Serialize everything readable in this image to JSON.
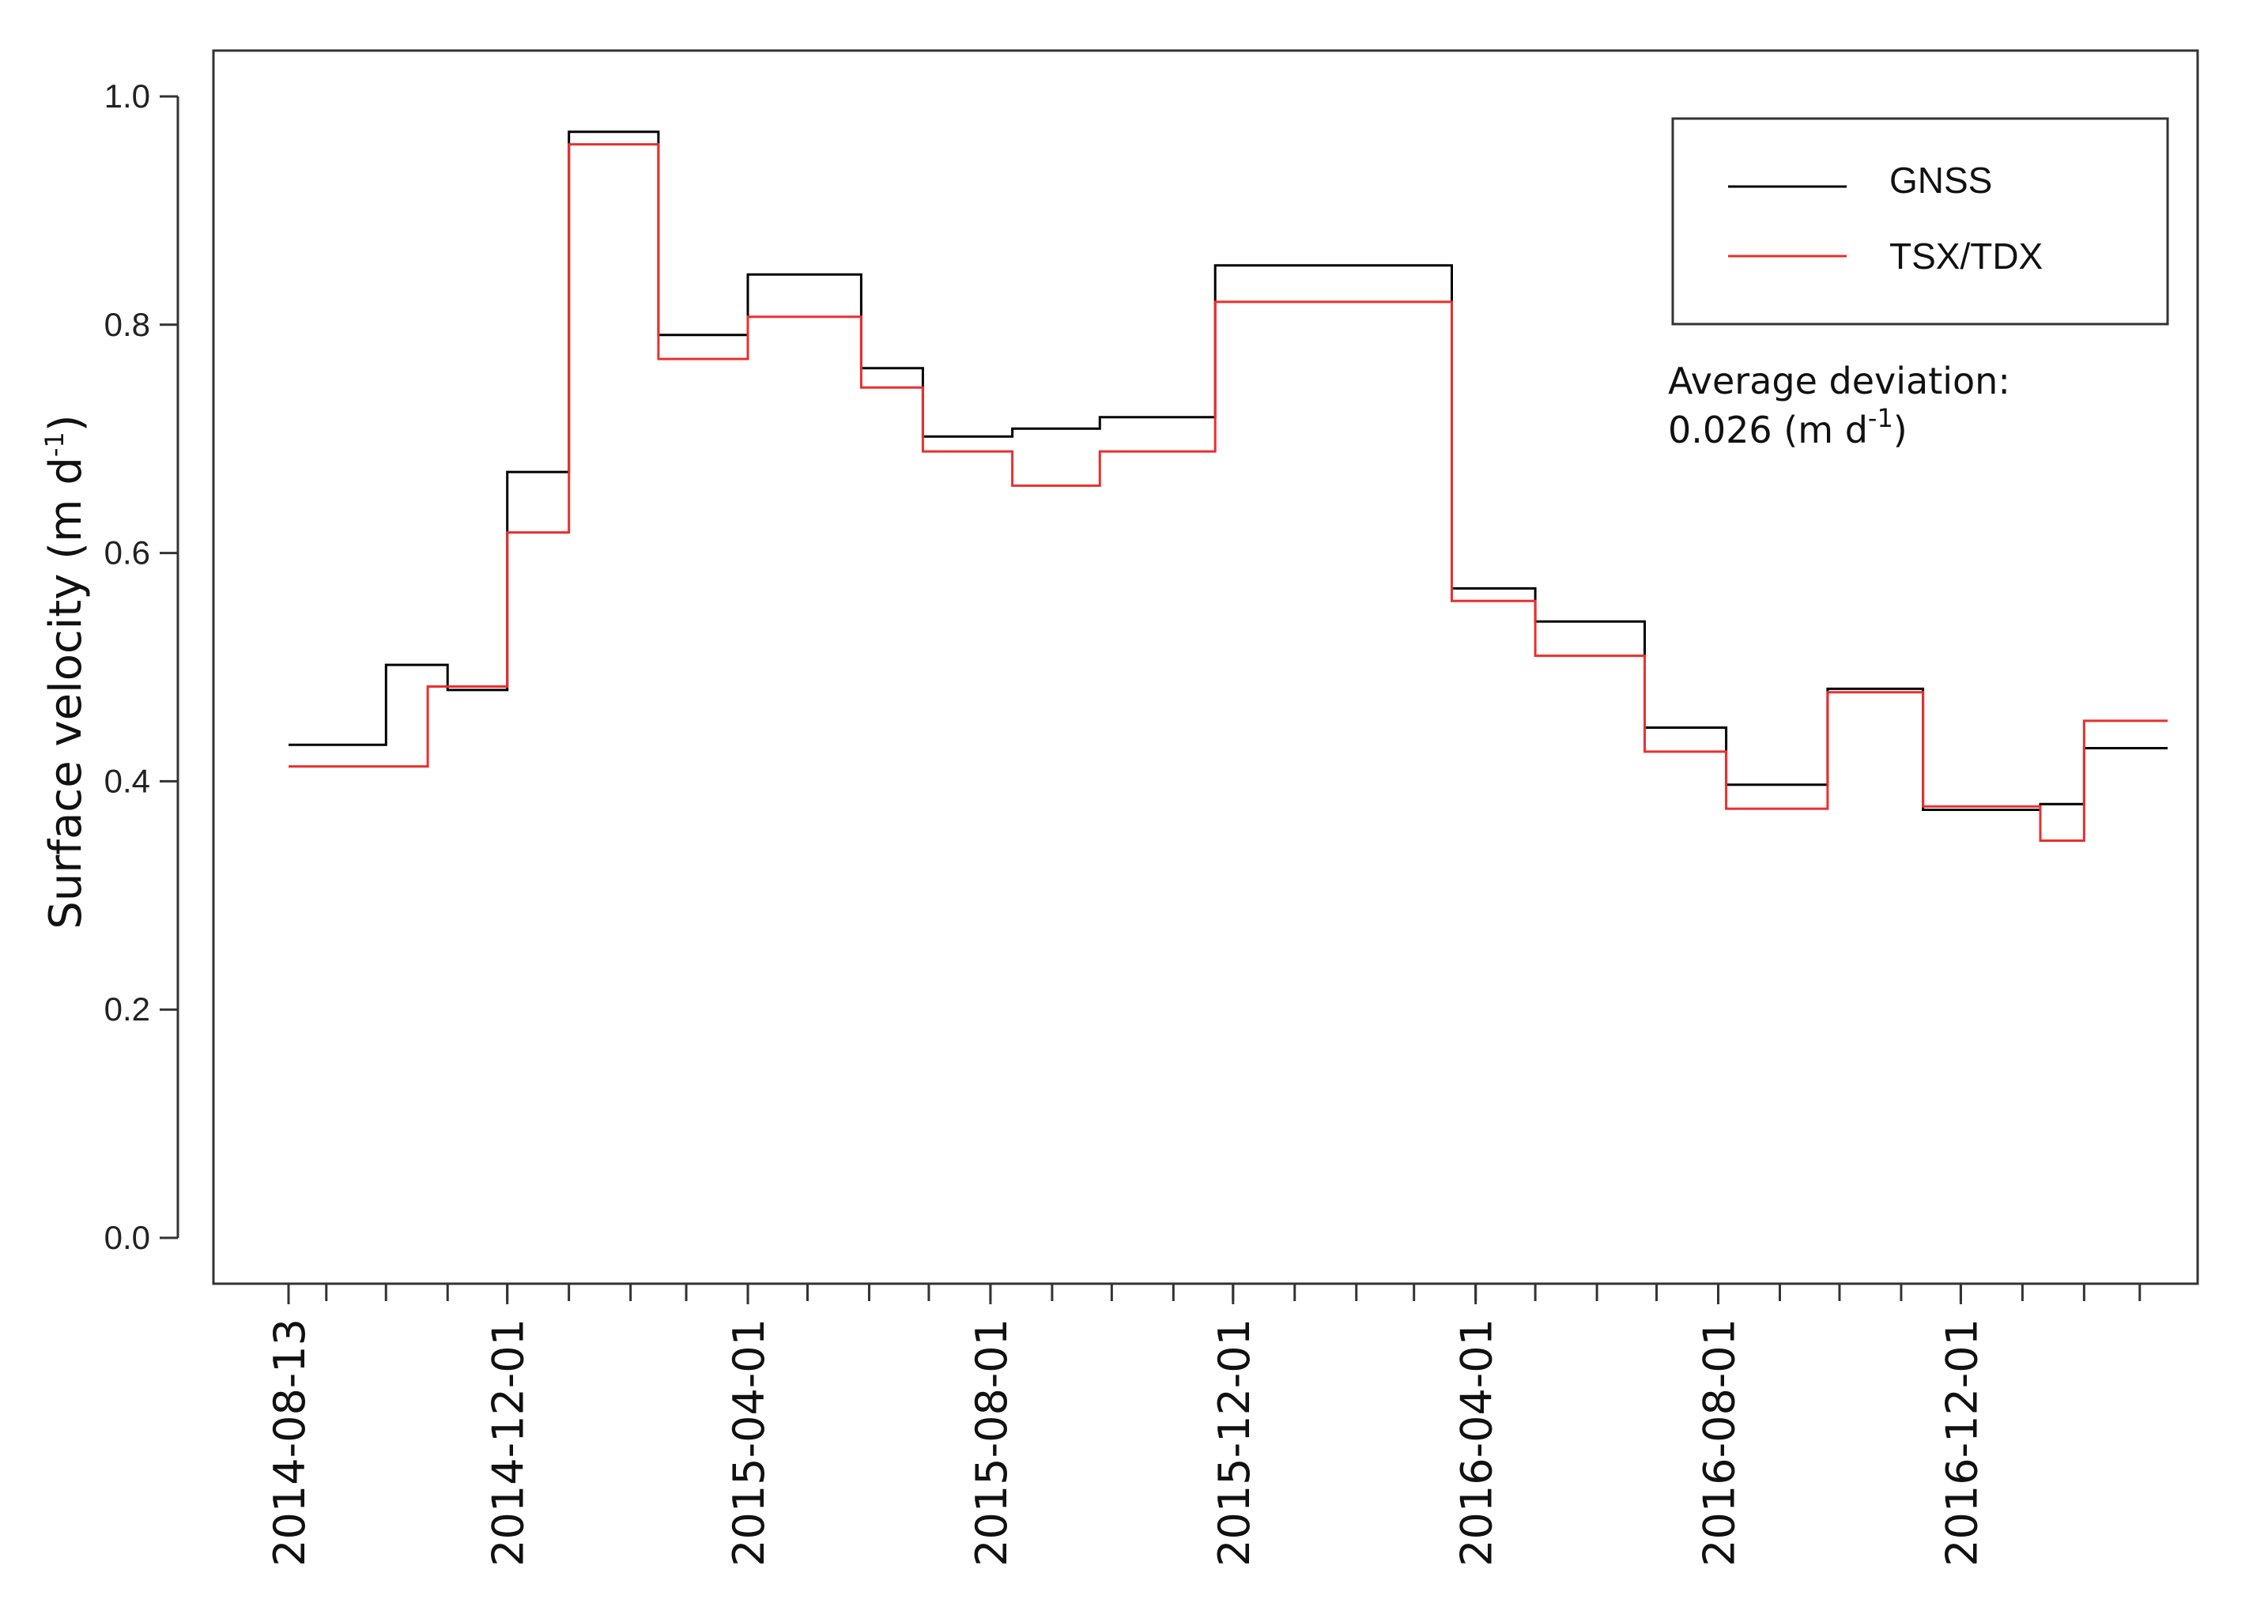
{
  "chart_data": {
    "type": "line",
    "step": true,
    "title": "",
    "xlabel": "",
    "ylabel": "Surface velocity (m d",
    "ylabel_superscript": "-1",
    "ylabel_suffix": ")",
    "ylim": [
      0.0,
      1.0
    ],
    "yticks": [
      "0.0",
      "0.2",
      "0.4",
      "0.6",
      "0.8",
      "1.0"
    ],
    "xlim": [
      "2014-08-13",
      "2017-03-15"
    ],
    "xticks": [
      "2014-08-13",
      "2014-12-01",
      "2015-04-01",
      "2015-08-01",
      "2015-12-01",
      "2016-04-01",
      "2016-08-01",
      "2016-12-01"
    ],
    "grid": false,
    "legend_position": "top-right",
    "series": [
      {
        "name": "GNSS",
        "color": "#000000",
        "steps": [
          {
            "start": "2014-08-13",
            "end": "2014-10-01",
            "value": 0.432
          },
          {
            "start": "2014-10-01",
            "end": "2014-11-01",
            "value": 0.502
          },
          {
            "start": "2014-11-01",
            "end": "2014-12-01",
            "value": 0.48
          },
          {
            "start": "2014-12-01",
            "end": "2015-01-01",
            "value": 0.671
          },
          {
            "start": "2015-01-01",
            "end": "2015-02-15",
            "value": 0.969
          },
          {
            "start": "2015-02-15",
            "end": "2015-04-01",
            "value": 0.791
          },
          {
            "start": "2015-04-01",
            "end": "2015-05-28",
            "value": 0.844
          },
          {
            "start": "2015-05-28",
            "end": "2015-06-28",
            "value": 0.762
          },
          {
            "start": "2015-06-28",
            "end": "2015-08-12",
            "value": 0.702
          },
          {
            "start": "2015-08-12",
            "end": "2015-09-25",
            "value": 0.709
          },
          {
            "start": "2015-09-25",
            "end": "2015-11-22",
            "value": 0.719
          },
          {
            "start": "2015-11-22",
            "end": "2016-03-20",
            "value": 0.852
          },
          {
            "start": "2016-03-20",
            "end": "2016-05-01",
            "value": 0.569
          },
          {
            "start": "2016-05-01",
            "end": "2016-06-25",
            "value": 0.54
          },
          {
            "start": "2016-06-25",
            "end": "2016-08-05",
            "value": 0.447
          },
          {
            "start": "2016-08-05",
            "end": "2016-09-25",
            "value": 0.397
          },
          {
            "start": "2016-09-25",
            "end": "2016-11-12",
            "value": 0.481
          },
          {
            "start": "2016-11-12",
            "end": "2017-01-10",
            "value": 0.375
          },
          {
            "start": "2017-01-10",
            "end": "2017-02-01",
            "value": 0.38
          },
          {
            "start": "2017-02-01",
            "end": "2017-03-15",
            "value": 0.429
          }
        ]
      },
      {
        "name": "TSX/TDX",
        "color": "#e8302f",
        "steps": [
          {
            "start": "2014-08-13",
            "end": "2014-10-22",
            "value": 0.413
          },
          {
            "start": "2014-10-22",
            "end": "2014-12-01",
            "value": 0.483
          },
          {
            "start": "2014-12-01",
            "end": "2015-01-01",
            "value": 0.618
          },
          {
            "start": "2015-01-01",
            "end": "2015-02-15",
            "value": 0.958
          },
          {
            "start": "2015-02-15",
            "end": "2015-04-01",
            "value": 0.77
          },
          {
            "start": "2015-04-01",
            "end": "2015-05-28",
            "value": 0.807
          },
          {
            "start": "2015-05-28",
            "end": "2015-06-28",
            "value": 0.745
          },
          {
            "start": "2015-06-28",
            "end": "2015-08-12",
            "value": 0.689
          },
          {
            "start": "2015-08-12",
            "end": "2015-09-25",
            "value": 0.659
          },
          {
            "start": "2015-09-25",
            "end": "2015-11-22",
            "value": 0.689
          },
          {
            "start": "2015-11-22",
            "end": "2016-03-20",
            "value": 0.82
          },
          {
            "start": "2016-03-20",
            "end": "2016-05-01",
            "value": 0.558
          },
          {
            "start": "2016-05-01",
            "end": "2016-06-25",
            "value": 0.51
          },
          {
            "start": "2016-06-25",
            "end": "2016-08-05",
            "value": 0.426
          },
          {
            "start": "2016-08-05",
            "end": "2016-09-25",
            "value": 0.376
          },
          {
            "start": "2016-09-25",
            "end": "2016-11-12",
            "value": 0.478
          },
          {
            "start": "2016-11-12",
            "end": "2017-01-10",
            "value": 0.378
          },
          {
            "start": "2017-01-10",
            "end": "2017-02-01",
            "value": 0.348
          },
          {
            "start": "2017-02-01",
            "end": "2017-03-15",
            "value": 0.453
          }
        ]
      }
    ],
    "annotation": {
      "line1": "Average deviation:",
      "line2": "0.026 (m d",
      "line2_superscript": "-1",
      "line2_suffix": ")"
    }
  }
}
